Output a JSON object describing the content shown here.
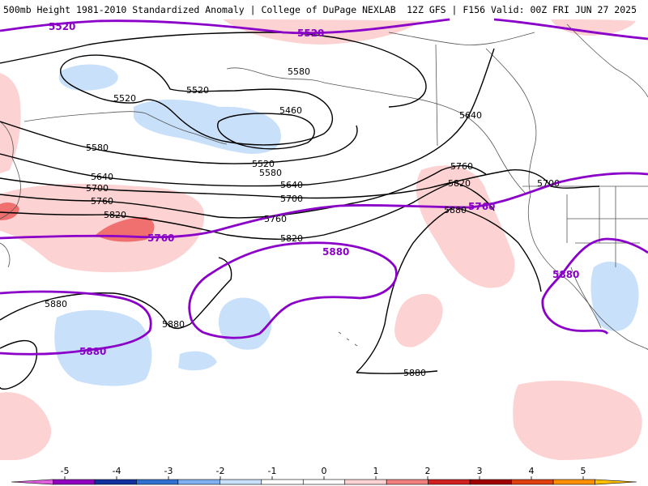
{
  "header": {
    "left": "500mb Height 1981-2010 Standardized Anomaly | College of DuPage NEXLAB",
    "right": "12Z GFS | F156 Valid: 00Z FRI JUN 27 2025"
  },
  "colors": {
    "contour": "#000000",
    "highlight_contour": "#8a00c8",
    "neg_anomaly": "#c8e0fa",
    "pos_anomaly_light": "#fcd2d2",
    "pos_anomaly_strong": "#f07070",
    "coast": "#555555"
  },
  "contour_labels": [
    {
      "text": "5520",
      "kind": "highlight"
    },
    {
      "text": "5520",
      "kind": "highlight"
    },
    {
      "text": "5580",
      "kind": "normal"
    },
    {
      "text": "5520",
      "kind": "normal"
    },
    {
      "text": "5520",
      "kind": "normal"
    },
    {
      "text": "5460",
      "kind": "normal"
    },
    {
      "text": "5580",
      "kind": "normal"
    },
    {
      "text": "5520",
      "kind": "normal"
    },
    {
      "text": "5580",
      "kind": "normal"
    },
    {
      "text": "5640",
      "kind": "normal"
    },
    {
      "text": "5640",
      "kind": "normal"
    },
    {
      "text": "5700",
      "kind": "normal"
    },
    {
      "text": "5640",
      "kind": "normal"
    },
    {
      "text": "5760",
      "kind": "normal"
    },
    {
      "text": "5700",
      "kind": "normal"
    },
    {
      "text": "5820",
      "kind": "normal"
    },
    {
      "text": "5760",
      "kind": "normal"
    },
    {
      "text": "5760",
      "kind": "highlight"
    },
    {
      "text": "5820",
      "kind": "normal"
    },
    {
      "text": "5760",
      "kind": "normal"
    },
    {
      "text": "5820",
      "kind": "normal"
    },
    {
      "text": "5880",
      "kind": "normal"
    },
    {
      "text": "5760",
      "kind": "highlight"
    },
    {
      "text": "5700",
      "kind": "normal"
    },
    {
      "text": "5880",
      "kind": "highlight"
    },
    {
      "text": "5880",
      "kind": "highlight"
    },
    {
      "text": "5880",
      "kind": "normal"
    },
    {
      "text": "5880",
      "kind": "normal"
    },
    {
      "text": "5880",
      "kind": "highlight"
    },
    {
      "text": "5880",
      "kind": "normal"
    }
  ],
  "colorbar": {
    "ticks": [
      "-5",
      "-4",
      "-3",
      "-2",
      "-1",
      "0",
      "1",
      "2",
      "3",
      "4",
      "5"
    ],
    "bins": [
      {
        "color": "#e060e0"
      },
      {
        "color": "#9000c0"
      },
      {
        "color": "#1030a0"
      },
      {
        "color": "#3070d0"
      },
      {
        "color": "#80b0f0"
      },
      {
        "color": "#c8e0fa"
      },
      {
        "color": "#ffffff"
      },
      {
        "color": "#ffffff"
      },
      {
        "color": "#fcd2d2"
      },
      {
        "color": "#f08080"
      },
      {
        "color": "#d02020"
      },
      {
        "color": "#a00000"
      },
      {
        "color": "#e04010"
      },
      {
        "color": "#ff9000"
      },
      {
        "color": "#ffc000"
      }
    ]
  }
}
